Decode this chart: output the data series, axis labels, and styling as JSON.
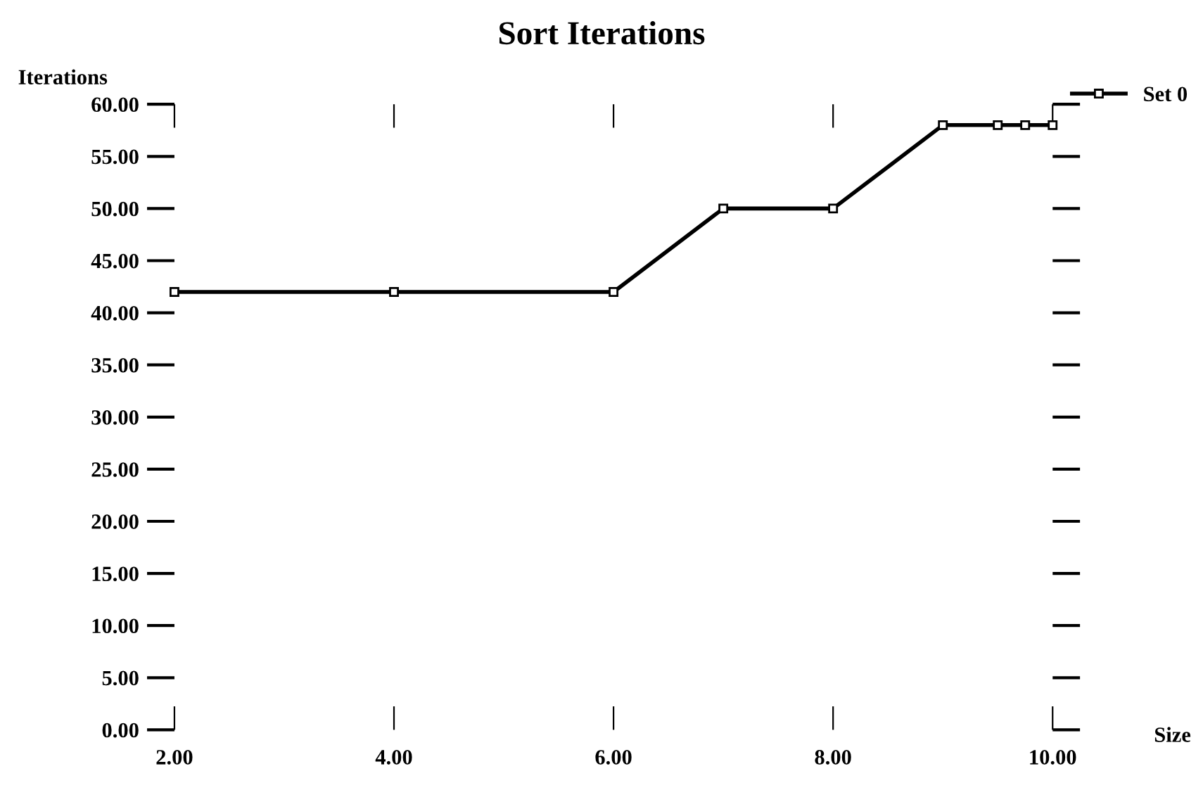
{
  "chart_data": {
    "type": "line",
    "title": "Sort Iterations",
    "xlabel": "Size",
    "ylabel": "Iterations",
    "x": [
      2,
      4,
      6,
      7,
      8,
      9,
      9.5,
      9.75,
      10
    ],
    "series": [
      {
        "name": "Set 0",
        "color": "#000000",
        "values": [
          42,
          42,
          42,
          50,
          50,
          58,
          58,
          58,
          58
        ]
      }
    ],
    "xlim": [
      2,
      10
    ],
    "ylim": [
      0,
      60
    ],
    "xticks": [
      {
        "value": 2,
        "label": "2.00"
      },
      {
        "value": 4,
        "label": "4.00"
      },
      {
        "value": 6,
        "label": "6.00"
      },
      {
        "value": 8,
        "label": "8.00"
      },
      {
        "value": 10,
        "label": "10.00"
      }
    ],
    "yticks": [
      {
        "value": 0,
        "label": "0.00"
      },
      {
        "value": 5,
        "label": "5.00"
      },
      {
        "value": 10,
        "label": "10.00"
      },
      {
        "value": 15,
        "label": "15.00"
      },
      {
        "value": 20,
        "label": "20.00"
      },
      {
        "value": 25,
        "label": "25.00"
      },
      {
        "value": 30,
        "label": "30.00"
      },
      {
        "value": 35,
        "label": "35.00"
      },
      {
        "value": 40,
        "label": "40.00"
      },
      {
        "value": 45,
        "label": "45.00"
      },
      {
        "value": 50,
        "label": "50.00"
      },
      {
        "value": 55,
        "label": "55.00"
      },
      {
        "value": 60,
        "label": "60.00"
      }
    ],
    "marker": "square",
    "line_style": "solid",
    "legend": "top right",
    "grid": false
  }
}
